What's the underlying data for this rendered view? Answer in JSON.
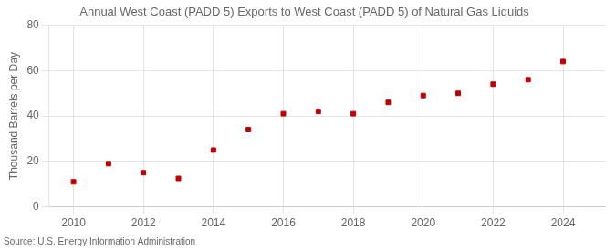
{
  "chart_data": {
    "type": "scatter",
    "title": "Annual West Coast (PADD 5) Exports to West Coast (PADD 5) of Natural Gas Liquids",
    "ylabel": "Thousand Barrels per Day",
    "annotation": "Source: U.S. Energy Information Administration",
    "x": [
      2010,
      2011,
      2012,
      2013,
      2014,
      2015,
      2016,
      2017,
      2018,
      2019,
      2020,
      2021,
      2022,
      2023,
      2024
    ],
    "values": [
      11.0,
      19.0,
      15.0,
      12.5,
      25.0,
      34.0,
      41.0,
      42.0,
      41.0,
      46.0,
      49.0,
      50.0,
      54.0,
      56.0,
      64.0
    ],
    "color": "#c00000",
    "marker": "square",
    "xlim": [
      2009.3,
      2025.2
    ],
    "xticks": [
      2010,
      2012,
      2014,
      2016,
      2018,
      2020,
      2022,
      2024
    ],
    "ylim": [
      0,
      80
    ],
    "yticks": [
      0,
      20,
      40,
      60,
      80
    ],
    "grid": true
  }
}
